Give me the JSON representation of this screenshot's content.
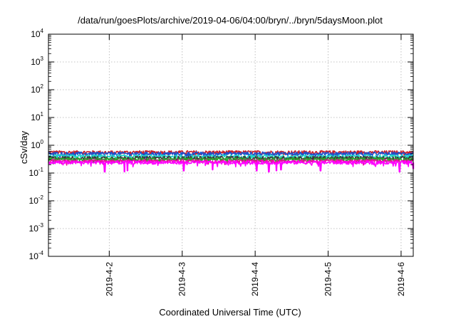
{
  "chart_data": {
    "type": "line",
    "title": "/data/run/goesPlots/archive/2019-04-06/04:00/bryn/../bryn/5daysMoon.plot",
    "xlabel": "Coordinated Universal Time (UTC)",
    "ylabel": "cSv/day",
    "x_range": [
      "2019-04-01T04:00",
      "2019-04-06T04:00"
    ],
    "ylim": [
      0.0001,
      10000
    ],
    "y_scale": "log",
    "grid": true,
    "x_ticks": [
      {
        "label": "2019-4-2",
        "value": "2019-04-02T00:00"
      },
      {
        "label": "2019-4-3",
        "value": "2019-04-03T00:00"
      },
      {
        "label": "2019-4-4",
        "value": "2019-04-04T00:00"
      },
      {
        "label": "2019-4-5",
        "value": "2019-04-05T00:00"
      },
      {
        "label": "2019-4-6",
        "value": "2019-04-06T00:00"
      }
    ],
    "y_ticks": [
      {
        "base": "10",
        "exp": "-4",
        "value": 0.0001
      },
      {
        "base": "10",
        "exp": "-3",
        "value": 0.001
      },
      {
        "base": "10",
        "exp": "-2",
        "value": 0.01
      },
      {
        "base": "10",
        "exp": "-1",
        "value": 0.1
      },
      {
        "base": "10",
        "exp": "0",
        "value": 1
      },
      {
        "base": "10",
        "exp": "1",
        "value": 10
      },
      {
        "base": "10",
        "exp": "2",
        "value": 100
      },
      {
        "base": "10",
        "exp": "3",
        "value": 1000
      },
      {
        "base": "10",
        "exp": "4",
        "value": 10000
      }
    ],
    "series": [
      {
        "color": "#cc1f2a",
        "level": 0.56,
        "dips": []
      },
      {
        "color": "#1f4fcc",
        "level": 0.5,
        "dips": []
      },
      {
        "color": "#20d4c8",
        "level": 0.4,
        "dips": []
      },
      {
        "color": "#3a3a3a",
        "level": 0.35,
        "dips": []
      },
      {
        "color": "#2ca02c",
        "level": 0.31,
        "dips": []
      },
      {
        "color": "#e8109a",
        "level": 0.27,
        "dips": []
      },
      {
        "color": "#ff00ff",
        "level": 0.24,
        "dips": [
          {
            "x": "2019-04-01T22:30",
            "y": 0.11
          },
          {
            "x": "2019-04-02T05:00",
            "y": 0.11
          },
          {
            "x": "2019-04-02T06:00",
            "y": 0.12
          },
          {
            "x": "2019-04-03T00:30",
            "y": 0.12
          },
          {
            "x": "2019-04-03T10:00",
            "y": 0.13
          },
          {
            "x": "2019-04-04T00:30",
            "y": 0.12
          },
          {
            "x": "2019-04-04T04:30",
            "y": 0.11
          },
          {
            "x": "2019-04-04T07:00",
            "y": 0.12
          },
          {
            "x": "2019-04-04T08:30",
            "y": 0.13
          },
          {
            "x": "2019-04-04T21:30",
            "y": 0.12
          },
          {
            "x": "2019-04-05T23:30",
            "y": 0.11
          },
          {
            "x": "2019-04-06T04:00",
            "y": 0.14
          }
        ]
      }
    ]
  }
}
